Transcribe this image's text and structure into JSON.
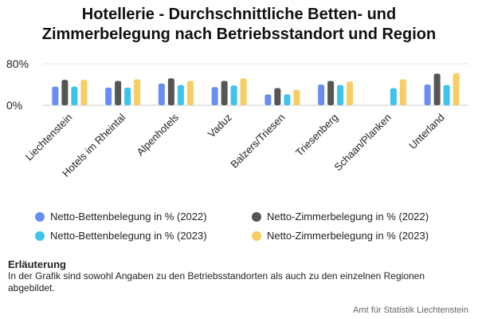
{
  "chart_data": {
    "type": "bar",
    "title_lines": [
      "Hotellerie - Durchschnittliche Betten- und",
      "Zimmerbelegung nach Betriebsstandort und Region"
    ],
    "categories": [
      "Liechtenstein",
      "Hotels im Rheintal",
      "Alpenhotels",
      "Vaduz",
      "Balzers/Triesen",
      "Triesenberg",
      "Schaan/Planken",
      "Unterland"
    ],
    "series": [
      {
        "name": "Netto-Bettenbelegung in % (2022)",
        "color": "#6b8cf2",
        "values": [
          36,
          34,
          42,
          35,
          21,
          40,
          null,
          40
        ]
      },
      {
        "name": "Netto-Zimmerbelegung in % (2022)",
        "color": "#555555",
        "values": [
          49,
          47,
          52,
          47,
          33,
          47,
          null,
          61
        ]
      },
      {
        "name": "Netto-Bettenbelegung in % (2023)",
        "color": "#3ec3ed",
        "values": [
          36,
          34,
          39,
          38,
          21,
          39,
          33,
          39
        ]
      },
      {
        "name": "Netto-Zimmerbelegung in % (2023)",
        "color": "#f7cd64",
        "values": [
          49,
          50,
          47,
          52,
          30,
          46,
          50,
          62
        ]
      }
    ],
    "yticks": [
      "80%",
      "0%"
    ],
    "ylim": [
      0,
      80
    ],
    "grid": true,
    "legend_position": "bottom"
  },
  "note": {
    "heading": "Erläuterung",
    "text": "In der Grafik sind sowohl Angaben zu den Betriebsstandorten als auch zu den einzelnen Regionen abgebildet."
  },
  "source": "Amt für Statistik Liechtenstein"
}
